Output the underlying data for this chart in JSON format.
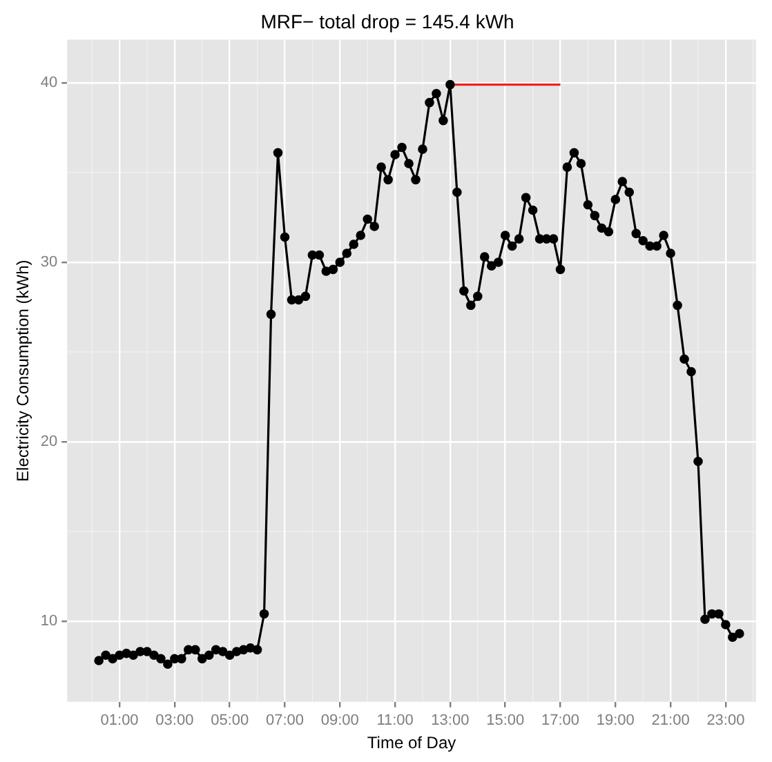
{
  "chart_data": {
    "type": "line",
    "title": "MRF− total drop = 145.4 kWh",
    "xlabel": "Time of Day",
    "ylabel": "Electricity Consumption (kWh)",
    "xlim": [
      -0.9,
      24.1
    ],
    "xticks": [
      {
        "value": 1,
        "label": "01:00"
      },
      {
        "value": 3,
        "label": "03:00"
      },
      {
        "value": 5,
        "label": "05:00"
      },
      {
        "value": 7,
        "label": "07:00"
      },
      {
        "value": 9,
        "label": "09:00"
      },
      {
        "value": 11,
        "label": "11:00"
      },
      {
        "value": 13,
        "label": "13:00"
      },
      {
        "value": 15,
        "label": "15:00"
      },
      {
        "value": 17,
        "label": "17:00"
      },
      {
        "value": 19,
        "label": "19:00"
      },
      {
        "value": 21,
        "label": "21:00"
      },
      {
        "value": 23,
        "label": "23:00"
      }
    ],
    "ylim": [
      5.5,
      42.4
    ],
    "yticks": [
      10,
      20,
      30,
      40
    ],
    "grid": true,
    "legend": false,
    "series": [
      {
        "color": "#000000",
        "marker": "circle",
        "x": [
          0.25,
          0.5,
          0.75,
          1,
          1.25,
          1.5,
          1.75,
          2,
          2.25,
          2.5,
          2.75,
          3,
          3.25,
          3.5,
          3.75,
          4,
          4.25,
          4.5,
          4.75,
          5,
          5.25,
          5.5,
          5.75,
          6,
          6.25,
          6.5,
          6.75,
          7,
          7.25,
          7.5,
          7.75,
          8,
          8.25,
          8.5,
          8.75,
          9,
          9.25,
          9.5,
          9.75,
          10,
          10.25,
          10.5,
          10.75,
          11,
          11.25,
          11.5,
          11.75,
          12,
          12.25,
          12.5,
          12.75,
          13,
          13.25,
          13.5,
          13.75,
          14,
          14.25,
          14.5,
          14.75,
          15,
          15.25,
          15.5,
          15.75,
          16,
          16.25,
          16.5,
          16.75,
          17,
          17.25,
          17.5,
          17.75,
          18,
          18.25,
          18.5,
          18.75,
          19,
          19.25,
          19.5,
          19.75,
          20,
          20.25,
          20.5,
          20.75,
          21,
          21.25,
          21.5,
          21.75,
          22,
          22.25,
          22.5,
          22.75,
          23,
          23.25,
          23.5
        ],
        "values": [
          7.8,
          8.1,
          7.9,
          8.1,
          8.2,
          8.1,
          8.3,
          8.3,
          8.1,
          7.9,
          7.6,
          7.9,
          7.9,
          8.4,
          8.4,
          7.9,
          8.1,
          8.4,
          8.3,
          8.1,
          8.3,
          8.4,
          8.5,
          8.4,
          10.4,
          27.1,
          36.1,
          31.4,
          27.9,
          27.9,
          28.1,
          30.4,
          30.4,
          29.5,
          29.6,
          30.0,
          30.5,
          31.0,
          31.5,
          32.4,
          32.0,
          35.3,
          34.6,
          36.0,
          36.4,
          35.5,
          34.6,
          36.3,
          38.9,
          39.4,
          37.9,
          39.9,
          33.9,
          28.4,
          27.6,
          28.1,
          30.3,
          29.8,
          30.0,
          31.5,
          30.9,
          31.3,
          33.6,
          32.9,
          31.3,
          31.3,
          31.3,
          29.6,
          35.3,
          36.1,
          35.5,
          33.2,
          32.6,
          31.9,
          31.7,
          33.5,
          34.5,
          33.9,
          31.6,
          31.2,
          30.9,
          30.9,
          31.5,
          30.5,
          27.6,
          24.6,
          23.9,
          18.9,
          10.1,
          10.4,
          10.4,
          9.8,
          9.1,
          9.3
        ]
      },
      {
        "color": "#ee2222",
        "marker": "none",
        "x": [
          13,
          17
        ],
        "values": [
          39.9,
          39.9
        ]
      }
    ]
  }
}
